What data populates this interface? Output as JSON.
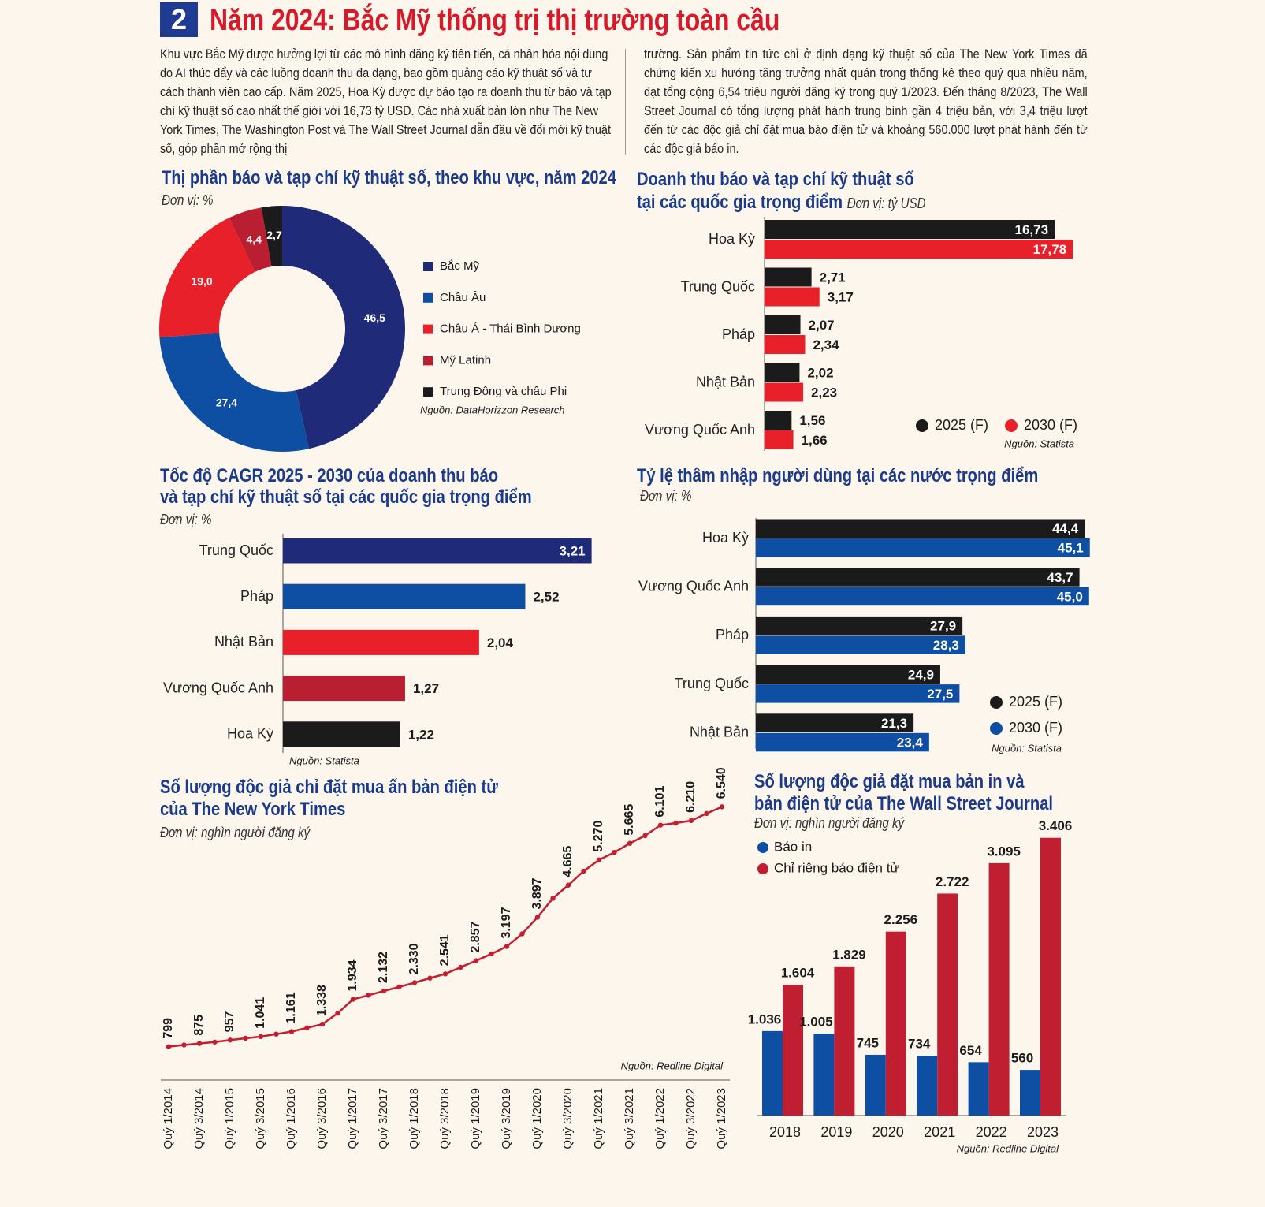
{
  "header": {
    "number": "2",
    "title": "Năm 2024: Bắc Mỹ thống trị thị trường toàn cầu"
  },
  "intro": {
    "columns": [
      "Khu vực Bắc Mỹ được hưởng lợi từ các mô hình đăng ký tiên tiến, cá nhân hóa nội dung do AI thúc đẩy và các luồng doanh thu đa dạng, bao gồm quảng cáo kỹ thuật số và tư cách thành viên cao cấp. Năm 2025, Hoa Kỳ được dự báo tạo ra doanh thu từ báo và tạp chí kỹ thuật số cao nhất thế giới với 16,73 tỷ USD. Các nhà xuất bản lớn như The New York Times, The Washington Post và The Wall Street Journal dẫn đầu về đổi mới kỹ thuật số, góp phần mở rộng thị",
      "trường. Sản phẩm tin tức chỉ ở định dạng kỹ thuật số của The New York Times đã chứng kiến xu hướng tăng trưởng nhất quán trong thống kê theo quý qua nhiều năm, đạt tổng cộng 6,54 triệu người đăng ký trong quý 1/2023. Đến tháng 8/2023, The Wall Street Journal có tổng lượng phát hành trung bình gần 4 triệu bản, với 3,4 triệu lượt đến từ các độc giả chỉ đặt mua báo điện tử và khoảng 560.000 lượt phát hành đến từ các độc giả báo in."
    ]
  },
  "chart_data": [
    {
      "type": "donut",
      "title": "Thị phần báo và tạp chí kỹ thuật số, theo khu vực, năm 2024",
      "unit": "Đơn vị: %",
      "categories": [
        "Bắc Mỹ",
        "Châu Âu",
        "Châu Á - Thái Bình Dương",
        "Mỹ Latinh",
        "Trung Đông và châu Phi"
      ],
      "values": [
        46.5,
        27.4,
        19.0,
        4.4,
        2.7
      ],
      "value_labels": [
        "46,5",
        "27,4",
        "19,0",
        "4,4",
        "2,7"
      ],
      "colors": [
        "#1f2a78",
        "#0e4ea3",
        "#e8202a",
        "#b91f31",
        "#1b1b1b"
      ],
      "source": "Nguồn: DataHorizzon Research"
    },
    {
      "type": "bar",
      "orientation": "horizontal",
      "title": [
        "Doanh thu báo và tạp chí kỹ thuật số",
        "tại các quốc gia trọng điểm"
      ],
      "unit": "Đơn vị: tỷ USD",
      "categories": [
        "Hoa Kỳ",
        "Trung Quốc",
        "Pháp",
        "Nhật Bản",
        "Vương Quốc Anh"
      ],
      "series": [
        {
          "name": "2025 (F)",
          "color": "#1b1b1b",
          "values": [
            16.73,
            2.71,
            2.07,
            2.02,
            1.56
          ],
          "value_labels": [
            "16,73",
            "2,71",
            "2,07",
            "2,02",
            "1,56"
          ]
        },
        {
          "name": "2030 (F)",
          "color": "#e8202a",
          "values": [
            17.78,
            3.17,
            2.34,
            2.23,
            1.66
          ],
          "value_labels": [
            "17,78",
            "3,17",
            "2,34",
            "2,23",
            "1,66"
          ]
        }
      ],
      "xlim": [
        0,
        18
      ],
      "source": "Nguồn: Statista"
    },
    {
      "type": "bar",
      "orientation": "horizontal",
      "title": [
        "Tốc độ CAGR 2025 - 2030 của doanh thu báo",
        "và tạp chí kỹ thuật số tại các quốc gia trọng điểm"
      ],
      "unit": "Đơn vị: %",
      "categories": [
        "Trung Quốc",
        "Pháp",
        "Nhật Bản",
        "Vương Quốc Anh",
        "Hoa Kỳ"
      ],
      "values": [
        3.21,
        2.52,
        2.04,
        1.27,
        1.22
      ],
      "value_labels": [
        "3,21",
        "2,52",
        "2,04",
        "1,27",
        "1,22"
      ],
      "colors": [
        "#1f2a78",
        "#0e4ea3",
        "#e8202a",
        "#b91f31",
        "#1b1b1b"
      ],
      "xlim": [
        0,
        3.5
      ],
      "source": "Nguồn: Statista"
    },
    {
      "type": "bar",
      "orientation": "horizontal",
      "title": "Tỷ lệ thâm nhập người dùng tại các nước trọng điểm",
      "unit": "Đơn vị: %",
      "categories": [
        "Hoa Kỳ",
        "Vương Quốc Anh",
        "Pháp",
        "Trung Quốc",
        "Nhật Bản"
      ],
      "series": [
        {
          "name": "2025 (F)",
          "color": "#1b1b1b",
          "values": [
            44.4,
            43.7,
            27.9,
            24.9,
            21.3
          ],
          "value_labels": [
            "44,4",
            "43,7",
            "27,9",
            "24,9",
            "21,3"
          ]
        },
        {
          "name": "2030 (F)",
          "color": "#0e4ea3",
          "values": [
            45.1,
            45.0,
            28.3,
            27.5,
            23.4
          ],
          "value_labels": [
            "45,1",
            "45,0",
            "28,3",
            "27,5",
            "23,4"
          ]
        }
      ],
      "xlim": [
        0,
        47
      ],
      "source": "Nguồn: Statista"
    },
    {
      "type": "line",
      "title": [
        "Số lượng độc giả chỉ đặt mua ấn bản điện tử",
        "của The New York Times"
      ],
      "unit": "Đơn vị: nghìn người đăng ký",
      "categories": [
        "Quý 1/2014",
        null,
        "Quý 3/2014",
        null,
        "Quý 1/2015",
        null,
        "Quý 3/2015",
        null,
        "Quý 1/2016",
        null,
        "Quý 3/2016",
        null,
        "Quý 1/2017",
        null,
        "Quý 3/2017",
        null,
        "Quý 1/2018",
        null,
        "Quý 3/2018",
        null,
        "Quý 1/2019",
        null,
        "Quý 3/2019",
        null,
        "Quý 1/2020",
        null,
        "Quý 3/2020",
        null,
        "Quý 1/2021",
        null,
        "Quý 3/2021",
        null,
        "Quý 1/2022",
        null,
        "Quý 3/2022",
        null,
        "Quý 1/2023"
      ],
      "values": [
        799,
        840,
        875,
        910,
        957,
        1000,
        1041,
        1100,
        1161,
        1250,
        1338,
        1600,
        1934,
        2030,
        2132,
        2230,
        2330,
        2440,
        2541,
        2700,
        2857,
        3020,
        3197,
        3500,
        3897,
        4350,
        4665,
        5000,
        5270,
        5450,
        5665,
        5850,
        6101,
        6150,
        6210,
        6380,
        6540
      ],
      "value_labels": [
        "799",
        null,
        "875",
        null,
        "957",
        null,
        "1.041",
        null,
        "1.161",
        null,
        "1.338",
        null,
        "1.934",
        null,
        "2.132",
        null,
        "2.330",
        null,
        "2.541",
        null,
        "2.857",
        null,
        "3.197",
        null,
        "3.897",
        null,
        "4.665",
        null,
        "5.270",
        null,
        "5.665",
        null,
        "6.101",
        null,
        "6.210",
        null,
        "6.540"
      ],
      "color": "#c41e30",
      "ylim": [
        0,
        7000
      ],
      "source": "Nguồn: Redline Digital"
    },
    {
      "type": "bar",
      "orientation": "vertical",
      "title": [
        "Số lượng độc giả đặt mua bản in và",
        "bản điện tử của The Wall Street Journal"
      ],
      "unit": "Đơn vị: nghìn người đăng ký",
      "categories": [
        "2018",
        "2019",
        "2020",
        "2021",
        "2022",
        "2023"
      ],
      "series": [
        {
          "name": "Báo in",
          "color": "#0e4ea3",
          "values": [
            1036,
            1005,
            745,
            734,
            654,
            560
          ],
          "value_labels": [
            "1.036",
            "1.005",
            "745",
            "734",
            "654",
            "560"
          ]
        },
        {
          "name": "Chỉ riêng báo điện tử",
          "color": "#c01f32",
          "values": [
            1604,
            1829,
            2256,
            2722,
            3095,
            3406
          ],
          "value_labels": [
            "1.604",
            "1.829",
            "2.256",
            "2.722",
            "3.095",
            "3.406"
          ]
        }
      ],
      "ylim": [
        0,
        3500
      ],
      "source": "Nguồn: Redline Digital"
    }
  ]
}
